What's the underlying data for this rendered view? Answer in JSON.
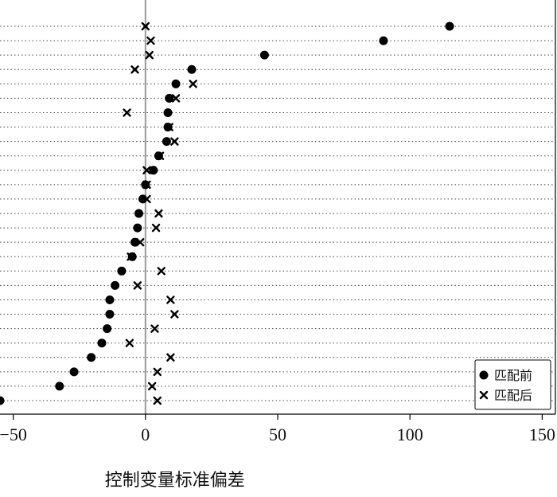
{
  "chart_data": {
    "type": "scatter",
    "orientation": "horizontal-dot-plot",
    "title": "",
    "xlabel": "控制变量标准偏差",
    "ylabel": "",
    "xlim": [
      -55,
      155
    ],
    "xticks": [
      -50,
      0,
      50,
      100,
      150
    ],
    "zero_line": true,
    "grid": "dotted horizontal row lines",
    "legend": {
      "position": "bottom-right",
      "entries": [
        "匹配前",
        "匹配后"
      ]
    },
    "rows": 27,
    "series": [
      {
        "name": "匹配前",
        "marker": "dot",
        "values": [
          115,
          90,
          45,
          17.5,
          11.5,
          9,
          8.5,
          8.5,
          8,
          5,
          3,
          0,
          -1,
          -2.5,
          -3,
          -4,
          -5,
          -9,
          -11.5,
          -13.5,
          -13.5,
          -14.5,
          -16.5,
          -20.5,
          -27,
          -32.5,
          -55
        ]
      },
      {
        "name": "匹配后",
        "marker": "x",
        "values": [
          0,
          2,
          1.5,
          -4,
          18,
          11.5,
          -7,
          9,
          11,
          5.5,
          0.5,
          0.5,
          0.5,
          5,
          4,
          -2,
          -5.5,
          6,
          -3,
          9.5,
          11,
          3.5,
          -6,
          9.5,
          4.5,
          2.5,
          4.5
        ]
      }
    ]
  }
}
